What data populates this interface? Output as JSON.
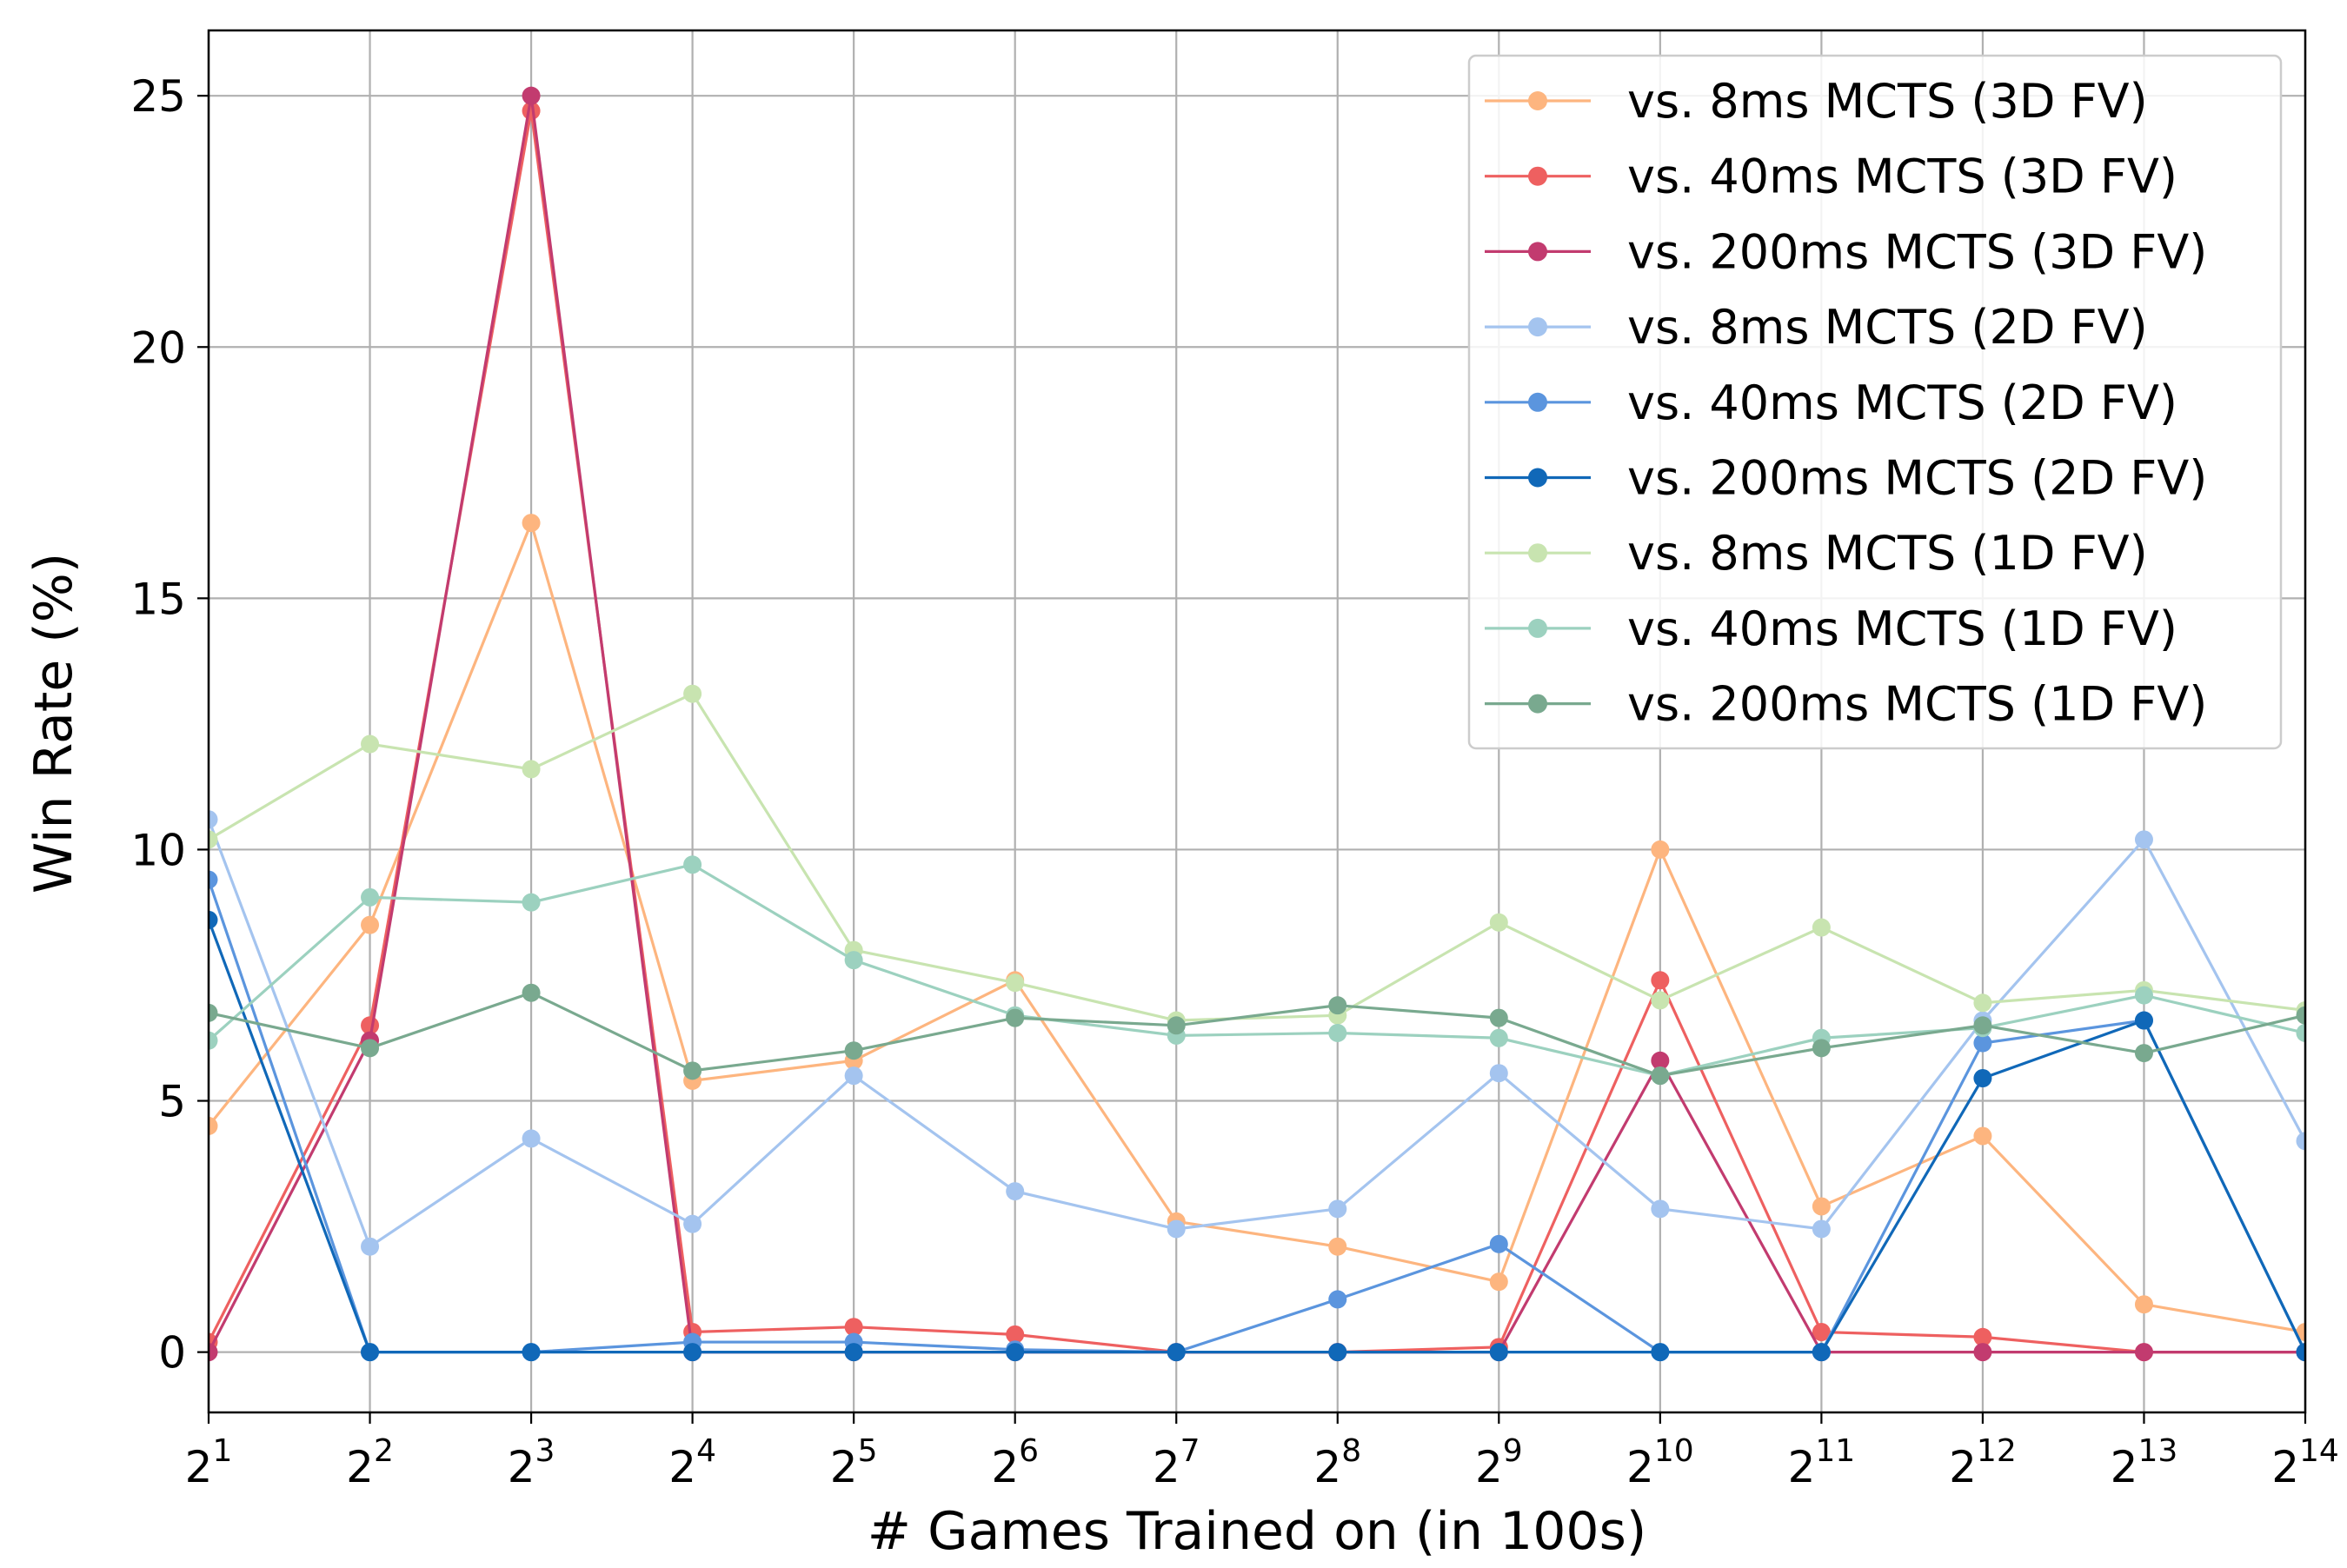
{
  "chart_data": {
    "type": "line",
    "xlabel": "# Games Trained on (in 100s)",
    "ylabel": "Win Rate (%)",
    "x_scale": "log2",
    "x_tick_base": "2",
    "x": [
      1,
      2,
      3,
      4,
      5,
      6,
      7,
      8,
      9,
      10,
      11,
      12,
      13,
      14
    ],
    "x_exponents": [
      "1",
      "2",
      "3",
      "4",
      "5",
      "6",
      "7",
      "8",
      "9",
      "10",
      "11",
      "12",
      "13",
      "14"
    ],
    "yticks": [
      "0",
      "5",
      "10",
      "15",
      "20",
      "25"
    ],
    "ylim": [
      -1.2,
      26.3
    ],
    "grid": true,
    "legend_position": "top-right",
    "series": [
      {
        "name": "vs. 8ms MCTS (3D FV)",
        "color": "#fdb57f",
        "values": [
          4.5,
          8.5,
          16.5,
          5.4,
          5.8,
          7.4,
          2.6,
          2.1,
          1.4,
          10.0,
          2.9,
          4.3,
          0.95,
          0.4
        ]
      },
      {
        "name": "vs. 40ms MCTS (3D FV)",
        "color": "#ee6060",
        "values": [
          0.2,
          6.5,
          24.7,
          0.4,
          0.5,
          0.35,
          0.0,
          0.0,
          0.1,
          7.4,
          0.4,
          0.3,
          0.0,
          0.0
        ]
      },
      {
        "name": "vs. 200ms MCTS (3D FV)",
        "color": "#c23b6f",
        "values": [
          0.0,
          6.2,
          25.0,
          0.0,
          0.0,
          0.0,
          0.0,
          0.0,
          0.0,
          5.8,
          0.0,
          0.0,
          0.0,
          0.0
        ]
      },
      {
        "name": "vs. 8ms MCTS (2D FV)",
        "color": "#a4c4ef",
        "values": [
          10.6,
          2.1,
          4.25,
          2.55,
          5.5,
          3.2,
          2.45,
          2.85,
          5.55,
          2.85,
          2.45,
          6.6,
          10.2,
          4.2
        ]
      },
      {
        "name": "vs. 40ms MCTS (2D FV)",
        "color": "#5b95de",
        "values": [
          9.4,
          0.0,
          0.0,
          0.2,
          0.2,
          0.05,
          0.0,
          1.05,
          2.15,
          0.0,
          0.0,
          6.15,
          6.6,
          0.0
        ]
      },
      {
        "name": "vs. 200ms MCTS (2D FV)",
        "color": "#1068b8",
        "values": [
          8.6,
          0.0,
          0.0,
          0.0,
          0.0,
          0.0,
          0.0,
          0.0,
          0.0,
          0.0,
          0.0,
          5.45,
          6.6,
          0.0
        ]
      },
      {
        "name": "vs. 8ms MCTS (1D FV)",
        "color": "#c8e4b0",
        "values": [
          10.2,
          12.1,
          11.6,
          13.1,
          8.0,
          7.35,
          6.6,
          6.7,
          8.55,
          7.0,
          8.45,
          6.95,
          7.2,
          6.8
        ]
      },
      {
        "name": "vs. 40ms MCTS (1D FV)",
        "color": "#9cd1bf",
        "values": [
          6.2,
          9.05,
          8.95,
          9.7,
          7.8,
          6.7,
          6.3,
          6.35,
          6.25,
          5.5,
          6.25,
          6.45,
          7.1,
          6.35
        ]
      },
      {
        "name": "vs. 200ms MCTS (1D FV)",
        "color": "#79a98f",
        "values": [
          6.75,
          6.05,
          7.15,
          5.6,
          6.0,
          6.65,
          6.5,
          6.9,
          6.65,
          5.5,
          6.05,
          6.5,
          5.95,
          6.7
        ]
      }
    ]
  }
}
